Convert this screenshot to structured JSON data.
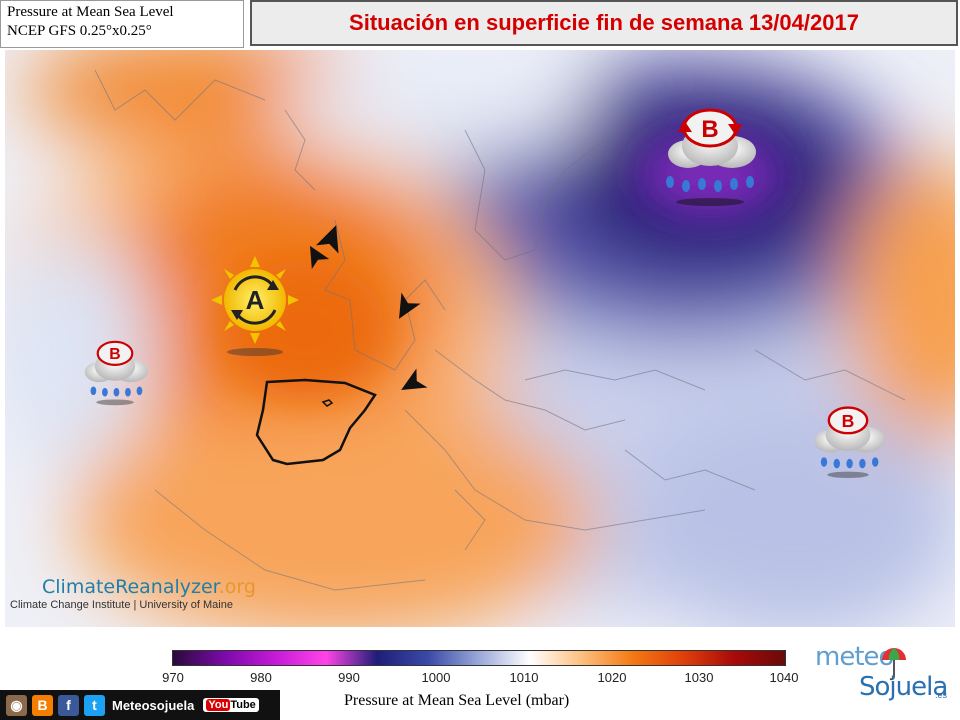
{
  "header": {
    "product_line1": "Pressure at Mean Sea Level",
    "product_line2": "NCEP GFS 0.25°x0.25°",
    "title": "Situación en superficie fin de semana 13/04/2017"
  },
  "map": {
    "high_pressure_label": "A",
    "low_pressure_label": "B",
    "low_pressure_count": 3,
    "wind_arrow_count": 4,
    "colors": {
      "high": "#f07a1e",
      "high_light": "#fbb878",
      "neutral": "#f6f7fb",
      "low_light": "#c9d0ec",
      "low_deep": "#2a1a78",
      "low_core": "#7a2bb8",
      "spain_border": "#111111"
    }
  },
  "watermark": {
    "logo_main": "ClimateReanalyzer",
    "logo_suffix": ".org",
    "subtitle": "Climate Change Institute | University of Maine"
  },
  "colorbar": {
    "ticks": [
      "970",
      "980",
      "990",
      "1000",
      "1010",
      "1020",
      "1030",
      "1040"
    ],
    "title": "Pressure at Mean Sea Level (mbar)",
    "stops": [
      "#2a0a3a",
      "#7a0aa8",
      "#c41ad8",
      "#ff44e8",
      "#1e1e78",
      "#3a4aa8",
      "#9aa8da",
      "#ffffff",
      "#fdc080",
      "#f47a14",
      "#e0400a",
      "#a80a0a",
      "#6a0a0a"
    ]
  },
  "footer": {
    "social_name": "Meteosojuela",
    "youtube_label": "You",
    "youtube_label2": "Tube",
    "brand_top": "meteo",
    "brand_bottom": "Sojuela",
    "brand_suffix": ".es"
  }
}
